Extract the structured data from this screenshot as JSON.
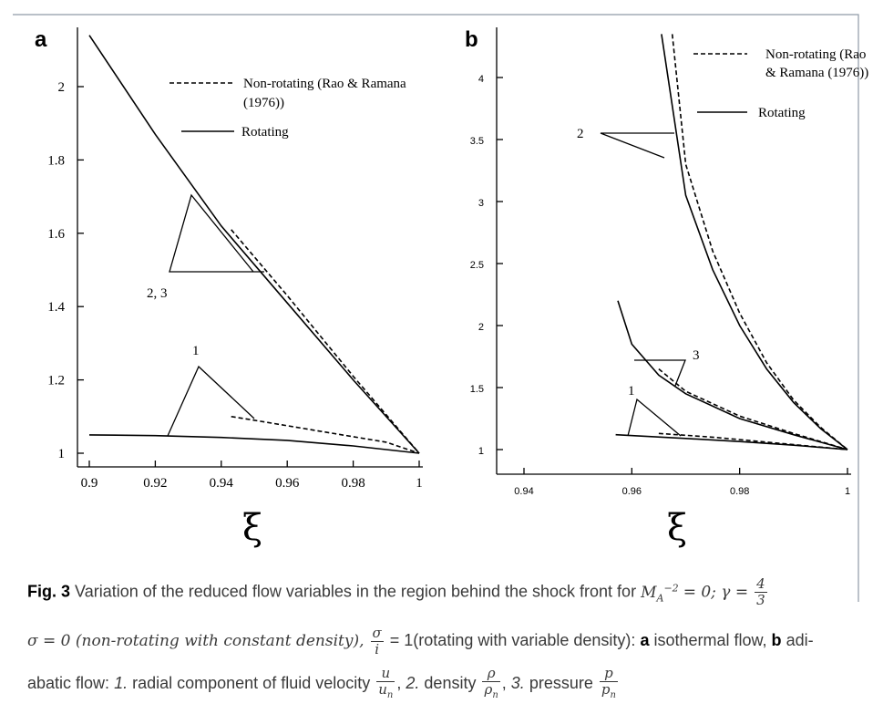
{
  "figure": {
    "panel_a_label": "a",
    "panel_b_label": "b",
    "xaxis_symbol": "ξ"
  },
  "chart_data": [
    {
      "type": "line",
      "panel": "a",
      "xlim": [
        0.9,
        1.0
      ],
      "ylim": [
        0.97,
        2.2
      ],
      "xticks": [
        "0.9",
        "0.92",
        "0.94",
        "0.96",
        "0.98",
        "1"
      ],
      "yticks": [
        "1",
        "1.2",
        "1.4",
        "1.6",
        "1.8",
        "2"
      ],
      "xlabel": "ξ",
      "legend": [
        {
          "label": "Non-rotating (Rao & Ramana (1976))",
          "style": "dashed"
        },
        {
          "label": "Rotating",
          "style": "solid"
        }
      ],
      "legend_placement": "top-right",
      "series": [
        {
          "style": "solid",
          "group": "2, 3",
          "x": [
            0.9,
            0.92,
            0.94,
            0.96,
            0.98,
            1.0
          ],
          "y": [
            2.14,
            1.87,
            1.62,
            1.41,
            1.2,
            1.0
          ]
        },
        {
          "style": "dashed",
          "group": "2, 3",
          "x": [
            0.943,
            0.96,
            0.98,
            1.0
          ],
          "y": [
            1.61,
            1.43,
            1.21,
            1.0
          ]
        },
        {
          "style": "solid",
          "group": "1",
          "x": [
            0.9,
            0.92,
            0.94,
            0.96,
            0.98,
            1.0
          ],
          "y": [
            1.05,
            1.048,
            1.043,
            1.035,
            1.02,
            1.0
          ]
        },
        {
          "style": "dashed",
          "group": "1",
          "x": [
            0.943,
            0.95,
            0.97,
            0.99,
            1.0
          ],
          "y": [
            1.1,
            1.09,
            1.06,
            1.03,
            1.0
          ]
        }
      ],
      "annotations": [
        "2, 3",
        "1"
      ]
    },
    {
      "type": "line",
      "panel": "b",
      "xlim": [
        0.93,
        1.0
      ],
      "ylim": [
        0.9,
        4.4
      ],
      "xticks": [
        "0.94",
        "0.96",
        "0.98",
        "1"
      ],
      "yticks": [
        "1",
        "1.5",
        "2",
        "2.5",
        "3",
        "3.5",
        "4"
      ],
      "xlabel": "ξ",
      "legend": [
        {
          "label": "Non-rotating (Rao & Ramana (1976))",
          "style": "dashed"
        },
        {
          "label": "Rotating",
          "style": "solid"
        }
      ],
      "legend_placement": "top-right",
      "series": [
        {
          "style": "solid",
          "group": "2",
          "x": [
            0.9655,
            0.97,
            0.975,
            0.98,
            0.985,
            0.99,
            0.995,
            1.0
          ],
          "y": [
            4.35,
            3.05,
            2.45,
            2.0,
            1.65,
            1.38,
            1.17,
            1.0
          ]
        },
        {
          "style": "dashed",
          "group": "2",
          "x": [
            0.9675,
            0.97,
            0.975,
            0.98,
            0.985,
            0.99,
            0.995,
            1.0
          ],
          "y": [
            4.35,
            3.3,
            2.6,
            2.1,
            1.7,
            1.4,
            1.18,
            1.0
          ]
        },
        {
          "style": "solid",
          "group": "3",
          "x": [
            0.9574,
            0.96,
            0.965,
            0.97,
            0.98,
            0.99,
            1.0
          ],
          "y": [
            2.2,
            1.85,
            1.6,
            1.45,
            1.25,
            1.12,
            1.0
          ]
        },
        {
          "style": "dashed",
          "group": "3",
          "x": [
            0.965,
            0.97,
            0.98,
            0.99,
            1.0
          ],
          "y": [
            1.65,
            1.47,
            1.27,
            1.13,
            1.0
          ]
        },
        {
          "style": "solid",
          "group": "1",
          "x": [
            0.957,
            0.97,
            0.98,
            0.99,
            1.0
          ],
          "y": [
            1.12,
            1.09,
            1.065,
            1.035,
            1.0
          ]
        },
        {
          "style": "dashed",
          "group": "1",
          "x": [
            0.965,
            0.975,
            0.985,
            0.995,
            1.0
          ],
          "y": [
            1.13,
            1.1,
            1.06,
            1.02,
            1.0
          ]
        }
      ],
      "annotations": [
        "2",
        "3",
        "1"
      ]
    }
  ],
  "caption": {
    "fig_label": "Fig. 3",
    "line1": "Variation of the reduced flow variables in the region behind the shock front for",
    "ma_expr": "M",
    "ma_sub": "A",
    "ma_sup": "−2",
    "ma_rest": "= 0; γ =",
    "gamma_num": "4",
    "gamma_den": "3",
    "line2a": "σ = 0 (non-rotating with constant density),",
    "sigma_num": "σ",
    "sigma_den": "i",
    "line2b": "= 1(rotating with variable density):",
    "a_bold": "a",
    "line2c": "isothermal flow,",
    "b_bold": "b",
    "line2d": "adi-",
    "line3a": "abatic flow:",
    "item1_num": "1.",
    "item1_text": "radial component of fluid velocity",
    "u_num": "u",
    "u_den": "u",
    "u_den_sub": "n",
    "item2_num": "2.",
    "item2_text": "density",
    "rho_num": "ρ",
    "rho_den": "ρ",
    "rho_den_sub": "n",
    "item3_num": "3.",
    "item3_text": "pressure",
    "p_num": "p",
    "p_den": "p",
    "p_den_sub": "n"
  }
}
